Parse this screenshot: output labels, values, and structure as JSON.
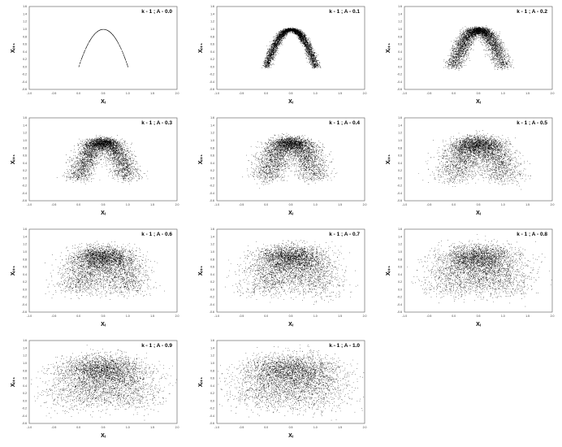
{
  "figure": {
    "background": "#ffffff",
    "point_color": "#000000"
  },
  "chart_data": [
    {
      "type": "scatter",
      "annotation": "k - 1 ; A - 0.0",
      "xlabel": "Xᵢ",
      "ylabel": "Xᵢ₊₁",
      "xlim": [
        -1.0,
        2.0
      ],
      "ylim": [
        -0.6,
        1.6
      ],
      "noise_amplitude": 0.0,
      "points_approx": 500,
      "x_ticks": [
        "-1.0",
        "-0.5",
        "0.0",
        "0.5",
        "1.0",
        "1.5",
        "2.0"
      ],
      "y_ticks": [
        "-0.6",
        "-0.4",
        "-0.2",
        "0.0",
        "0.2",
        "0.4",
        "0.6",
        "0.8",
        "1.0",
        "1.2",
        "1.4",
        "1.6"
      ]
    },
    {
      "type": "scatter",
      "annotation": "k - 1 ; A - 0.1",
      "xlabel": "Xᵢ",
      "ylabel": "Xᵢ₊₁",
      "xlim": [
        -1.0,
        2.0
      ],
      "ylim": [
        -0.6,
        1.6
      ],
      "noise_amplitude": 0.1,
      "points_approx": 4000,
      "x_ticks": [
        "-1.0",
        "-0.5",
        "0.0",
        "0.5",
        "1.0",
        "1.5",
        "2.0"
      ],
      "y_ticks": [
        "-0.6",
        "-0.4",
        "-0.2",
        "0.0",
        "0.2",
        "0.4",
        "0.6",
        "0.8",
        "1.0",
        "1.2",
        "1.4",
        "1.6"
      ]
    },
    {
      "type": "scatter",
      "annotation": "k - 1 ; A - 0.2",
      "xlabel": "Xᵢ",
      "ylabel": "Xᵢ₊₁",
      "xlim": [
        -1.0,
        2.0
      ],
      "ylim": [
        -0.6,
        1.6
      ],
      "noise_amplitude": 0.2,
      "points_approx": 4000,
      "x_ticks": [
        "-1.0",
        "-0.5",
        "0.0",
        "0.5",
        "1.0",
        "1.5",
        "2.0"
      ],
      "y_ticks": [
        "-0.6",
        "-0.4",
        "-0.2",
        "0.0",
        "0.2",
        "0.4",
        "0.6",
        "0.8",
        "1.0",
        "1.2",
        "1.4",
        "1.6"
      ]
    },
    {
      "type": "scatter",
      "annotation": "k - 1 ; A - 0.3",
      "xlabel": "Xᵢ",
      "ylabel": "Xᵢ₊₁",
      "xlim": [
        -1.0,
        2.0
      ],
      "ylim": [
        -0.6,
        1.6
      ],
      "noise_amplitude": 0.3,
      "points_approx": 4000,
      "x_ticks": [
        "-1.0",
        "-0.5",
        "0.0",
        "0.5",
        "1.0",
        "1.5",
        "2.0"
      ],
      "y_ticks": [
        "-0.6",
        "-0.4",
        "-0.2",
        "0.0",
        "0.2",
        "0.4",
        "0.6",
        "0.8",
        "1.0",
        "1.2",
        "1.4",
        "1.6"
      ]
    },
    {
      "type": "scatter",
      "annotation": "k - 1 ; A - 0.4",
      "xlabel": "Xᵢ",
      "ylabel": "Xᵢ₊₁",
      "xlim": [
        -1.0,
        2.0
      ],
      "ylim": [
        -0.6,
        1.6
      ],
      "noise_amplitude": 0.4,
      "points_approx": 4000,
      "x_ticks": [
        "-1.0",
        "-0.5",
        "0.0",
        "0.5",
        "1.0",
        "1.5",
        "2.0"
      ],
      "y_ticks": [
        "-0.6",
        "-0.4",
        "-0.2",
        "0.0",
        "0.2",
        "0.4",
        "0.6",
        "0.8",
        "1.0",
        "1.2",
        "1.4",
        "1.6"
      ]
    },
    {
      "type": "scatter",
      "annotation": "k - 1 ; A - 0.5",
      "xlabel": "Xᵢ",
      "ylabel": "Xᵢ₊₁",
      "xlim": [
        -1.0,
        2.0
      ],
      "ylim": [
        -0.6,
        1.6
      ],
      "noise_amplitude": 0.5,
      "points_approx": 4000,
      "x_ticks": [
        "-1.0",
        "-0.5",
        "0.0",
        "0.5",
        "1.0",
        "1.5",
        "2.0"
      ],
      "y_ticks": [
        "-0.6",
        "-0.4",
        "-0.2",
        "0.0",
        "0.2",
        "0.4",
        "0.6",
        "0.8",
        "1.0",
        "1.2",
        "1.4",
        "1.6"
      ]
    },
    {
      "type": "scatter",
      "annotation": "k - 1 ; A - 0.6",
      "xlabel": "Xᵢ",
      "ylabel": "Xᵢ₊₁",
      "xlim": [
        -1.0,
        2.0
      ],
      "ylim": [
        -0.6,
        1.6
      ],
      "noise_amplitude": 0.6,
      "points_approx": 4000,
      "x_ticks": [
        "-1.0",
        "-0.5",
        "0.0",
        "0.5",
        "1.0",
        "1.5",
        "2.0"
      ],
      "y_ticks": [
        "-0.6",
        "-0.4",
        "-0.2",
        "0.0",
        "0.2",
        "0.4",
        "0.6",
        "0.8",
        "1.0",
        "1.2",
        "1.4",
        "1.6"
      ]
    },
    {
      "type": "scatter",
      "annotation": "k - 1 ; A - 0.7",
      "xlabel": "Xᵢ",
      "ylabel": "Xᵢ₊₁",
      "xlim": [
        -1.0,
        2.0
      ],
      "ylim": [
        -0.6,
        1.6
      ],
      "noise_amplitude": 0.7,
      "points_approx": 4000,
      "x_ticks": [
        "-1.0",
        "-0.5",
        "0.0",
        "0.5",
        "1.0",
        "1.5",
        "2.0"
      ],
      "y_ticks": [
        "-0.6",
        "-0.4",
        "-0.2",
        "0.0",
        "0.2",
        "0.4",
        "0.6",
        "0.8",
        "1.0",
        "1.2",
        "1.4",
        "1.6"
      ]
    },
    {
      "type": "scatter",
      "annotation": "k - 1 ; A - 0.8",
      "xlabel": "Xᵢ",
      "ylabel": "Xᵢ₊₁",
      "xlim": [
        -1.0,
        2.0
      ],
      "ylim": [
        -0.6,
        1.6
      ],
      "noise_amplitude": 0.8,
      "points_approx": 4000,
      "x_ticks": [
        "-1.0",
        "-0.5",
        "0.0",
        "0.5",
        "1.0",
        "1.5",
        "2.0"
      ],
      "y_ticks": [
        "-0.6",
        "-0.4",
        "-0.2",
        "0.0",
        "0.2",
        "0.4",
        "0.6",
        "0.8",
        "1.0",
        "1.2",
        "1.4",
        "1.6"
      ]
    },
    {
      "type": "scatter",
      "annotation": "k - 1 ; A - 0.9",
      "xlabel": "Xᵢ",
      "ylabel": "Xᵢ₊₁",
      "xlim": [
        -1.0,
        2.0
      ],
      "ylim": [
        -0.6,
        1.6
      ],
      "noise_amplitude": 0.9,
      "points_approx": 4000,
      "x_ticks": [
        "-1.0",
        "-0.5",
        "0.0",
        "0.5",
        "1.0",
        "1.5",
        "2.0"
      ],
      "y_ticks": [
        "-0.6",
        "-0.4",
        "-0.2",
        "0.0",
        "0.2",
        "0.4",
        "0.6",
        "0.8",
        "1.0",
        "1.2",
        "1.4",
        "1.6"
      ]
    },
    {
      "type": "scatter",
      "annotation": "k - 1 ; A - 1.0",
      "xlabel": "Xᵢ",
      "ylabel": "Xᵢ₊₁",
      "xlim": [
        -1.0,
        2.0
      ],
      "ylim": [
        -0.6,
        1.6
      ],
      "noise_amplitude": 1.0,
      "points_approx": 4000,
      "x_ticks": [
        "-1.0",
        "-0.5",
        "0.0",
        "0.5",
        "1.0",
        "1.5",
        "2.0"
      ],
      "y_ticks": [
        "-0.6",
        "-0.4",
        "-0.2",
        "0.0",
        "0.2",
        "0.4",
        "0.6",
        "0.8",
        "1.0",
        "1.2",
        "1.4",
        "1.6"
      ]
    }
  ]
}
